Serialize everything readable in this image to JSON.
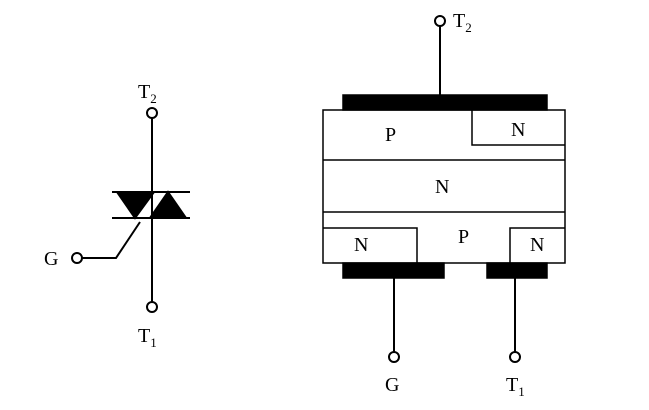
{
  "symbol": {
    "t2": {
      "main": "T",
      "sub": "2"
    },
    "t1": {
      "main": "T",
      "sub": "1"
    },
    "gate": "G"
  },
  "structure": {
    "t2": {
      "main": "T",
      "sub": "2"
    },
    "t1": {
      "main": "T",
      "sub": "1"
    },
    "gate": "G",
    "region_top_p": "P",
    "region_top_n": "N",
    "region_mid_n": "N",
    "region_bottom_p": "P",
    "region_bottom_n_left": "N",
    "region_bottom_n_right": "N"
  }
}
